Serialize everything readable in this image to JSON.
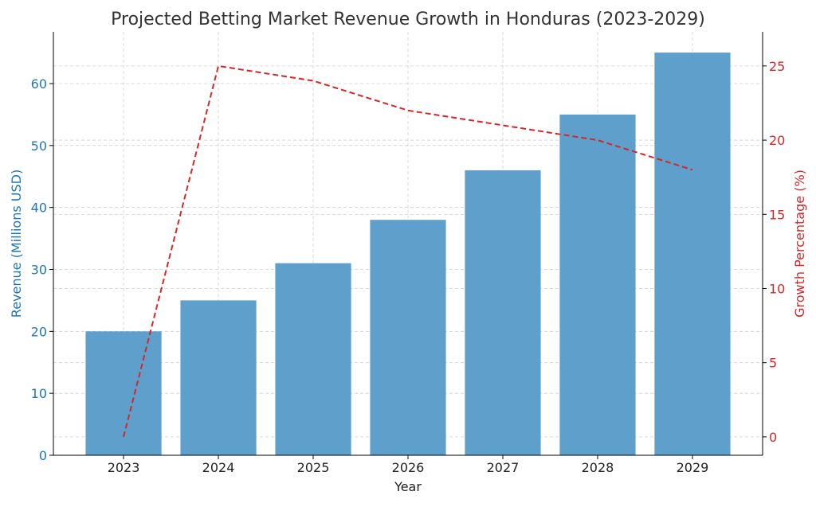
{
  "chart_data": {
    "type": "bar",
    "title": "Projected Betting Market Revenue Growth in Honduras (2023-2029)",
    "xlabel": "Year",
    "ylabel": "Revenue (Millions USD)",
    "y2label": "Growth Percentage (%)",
    "categories": [
      "2023",
      "2024",
      "2025",
      "2026",
      "2027",
      "2028",
      "2029"
    ],
    "series": [
      {
        "name": "Revenue (Millions USD)",
        "type": "bar",
        "axis": "left",
        "color": "#5f9fcb",
        "values": [
          20,
          25,
          31,
          38,
          46,
          55,
          65
        ]
      },
      {
        "name": "Growth Percentage (%)",
        "type": "line",
        "axis": "right",
        "color": "#d62728",
        "style": "dashed",
        "values": [
          0,
          25,
          24,
          22,
          21,
          20,
          18
        ]
      }
    ],
    "ylim": [
      0,
      68.35
    ],
    "y2lim": [
      -1.24,
      27.3
    ],
    "yticks": [
      "0",
      "10",
      "20",
      "30",
      "40",
      "50",
      "60"
    ],
    "y2ticks": [
      "0",
      "5",
      "10",
      "15",
      "20",
      "25"
    ],
    "grid": true,
    "left_axis_color": "#1f77b4",
    "right_axis_color": "#d62728"
  }
}
